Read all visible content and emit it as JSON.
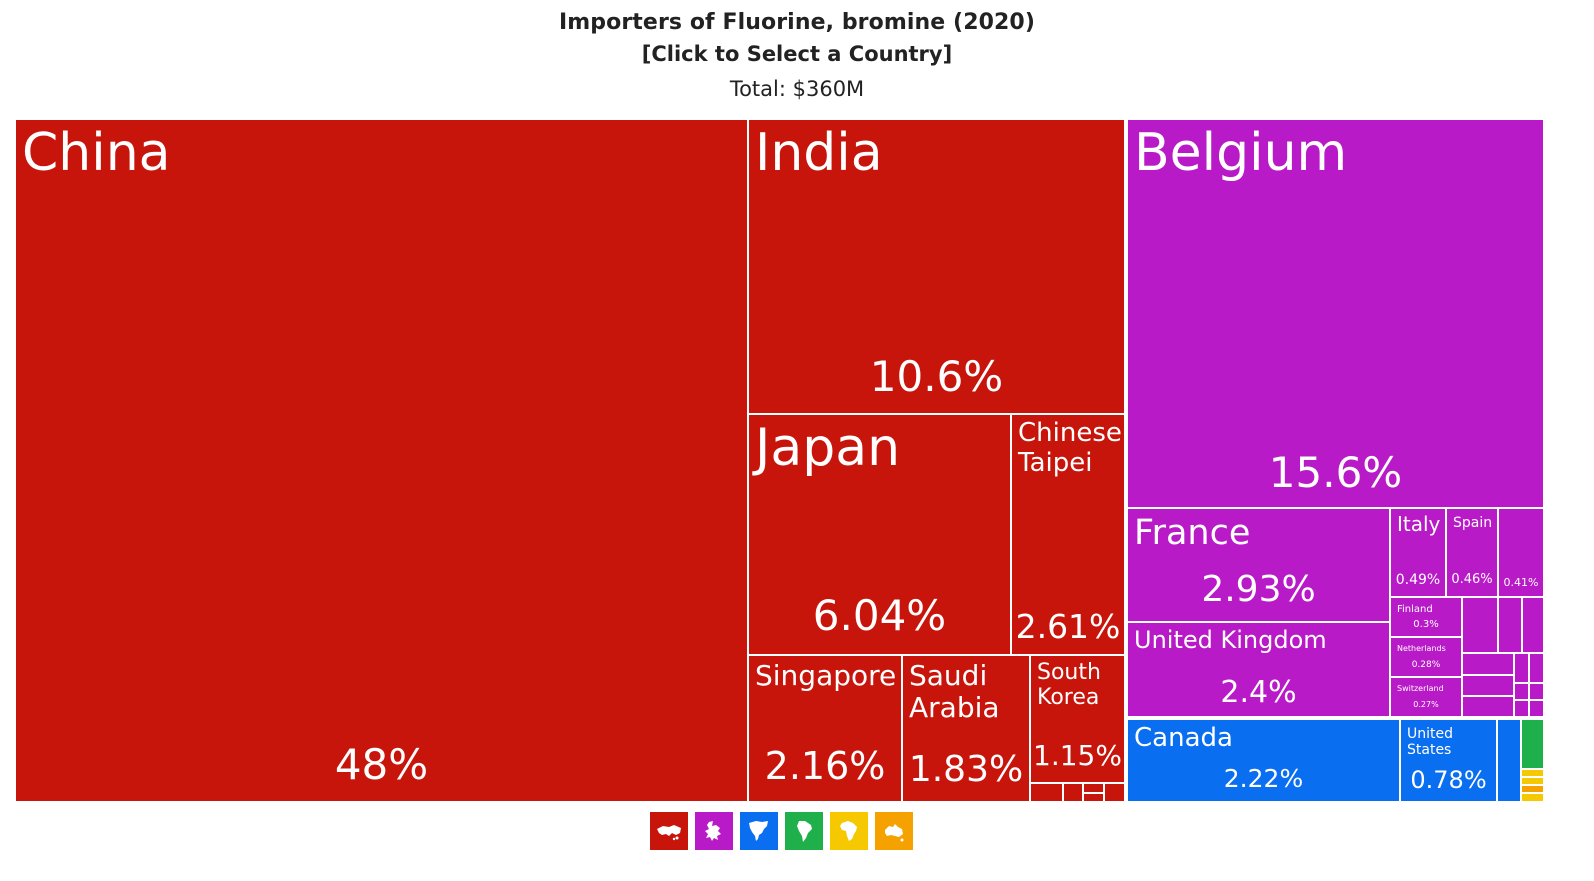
{
  "header": {
    "title": "Importers of Fluorine, bromine (2020)",
    "subtitle": "[Click to Select a Country]",
    "total": "Total: $360M"
  },
  "colors": {
    "asia": "#c8150c",
    "europe": "#b91ac7",
    "north_america": "#0a6ef0",
    "south_america": "#1fb04b",
    "africa": "#f5c800",
    "oceania": "#f5a200"
  },
  "chart_data": {
    "type": "treemap",
    "title": "Importers of Fluorine, bromine (2020)",
    "total": "$360M",
    "unit": "% of total imports",
    "items": [
      {
        "name": "China",
        "value": 48,
        "label": "48%",
        "region": "asia"
      },
      {
        "name": "India",
        "value": 10.6,
        "label": "10.6%",
        "region": "asia"
      },
      {
        "name": "Japan",
        "value": 6.04,
        "label": "6.04%",
        "region": "asia"
      },
      {
        "name": "Chinese Taipei",
        "value": 2.61,
        "label": "2.61%",
        "region": "asia"
      },
      {
        "name": "Singapore",
        "value": 2.16,
        "label": "2.16%",
        "region": "asia"
      },
      {
        "name": "Saudi Arabia",
        "value": 1.83,
        "label": "1.83%",
        "region": "asia"
      },
      {
        "name": "South Korea",
        "value": 1.15,
        "label": "1.15%",
        "region": "asia"
      },
      {
        "name": "Belgium",
        "value": 15.6,
        "label": "15.6%",
        "region": "europe"
      },
      {
        "name": "France",
        "value": 2.93,
        "label": "2.93%",
        "region": "europe"
      },
      {
        "name": "United Kingdom",
        "value": 2.4,
        "label": "2.4%",
        "region": "europe"
      },
      {
        "name": "Italy",
        "value": 0.49,
        "label": "0.49%",
        "region": "europe"
      },
      {
        "name": "Spain",
        "value": 0.46,
        "label": "0.46%",
        "region": "europe"
      },
      {
        "name": "",
        "value": 0.41,
        "label": "0.41%",
        "region": "europe"
      },
      {
        "name": "Finland",
        "value": 0.3,
        "label": "0.3%",
        "region": "europe"
      },
      {
        "name": "Netherlands",
        "value": 0.28,
        "label": "0.28%",
        "region": "europe"
      },
      {
        "name": "Switzerland",
        "value": 0.27,
        "label": "0.27%",
        "region": "europe"
      },
      {
        "name": "Canada",
        "value": 2.22,
        "label": "2.22%",
        "region": "north_america"
      },
      {
        "name": "United States",
        "value": 0.78,
        "label": "0.78%",
        "region": "north_america"
      }
    ]
  },
  "region_icons": [
    {
      "name": "asia",
      "icon": "asia-icon"
    },
    {
      "name": "europe",
      "icon": "europe-icon"
    },
    {
      "name": "north_america",
      "icon": "north-america-icon"
    },
    {
      "name": "south_america",
      "icon": "south-america-icon"
    },
    {
      "name": "africa",
      "icon": "africa-icon"
    },
    {
      "name": "oceania",
      "icon": "oceania-icon"
    }
  ]
}
